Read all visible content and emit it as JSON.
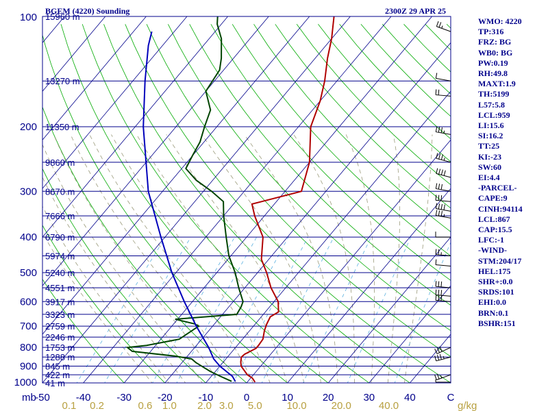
{
  "header": {
    "station": "BGEM (4220) Sounding",
    "time": "2300Z 29 APR 25"
  },
  "indices": [
    "WMO: 4220",
    "TP:316",
    "FRZ: BG",
    "WB0: BG",
    "PW:0.19",
    "RH:49.8",
    "MAXT:1.9",
    "TH:5199",
    "L57:5.8",
    "LCL:959",
    "LI:15.6",
    "SI:16.2",
    "TT:25",
    "KI:-23",
    "SW:60",
    "EI:4.4",
    "-PARCEL-",
    "CAPE:9",
    "CINH:94114",
    "LCL:867",
    "CAP:15.5",
    "LFC:-1",
    "-WIND-",
    "STM:204/17",
    "HEL:175",
    "SHR+:0.0",
    "SRDS:101",
    "EHI:0.0",
    "BRN:0.1",
    "BSHR:151"
  ],
  "colors": {
    "isobar": "#00008b",
    "isotherm": "#00008b",
    "dry_adiabat": "#00aa00",
    "moist_adiabat": "#9a9a7a",
    "mixing_ratio": "#5ab0e0",
    "temperature": "#b00000",
    "dewpoint": "#004400",
    "parcel": "#0000bb",
    "axis_text": "#00008b",
    "mixing_text": "#b8a040"
  },
  "chart_data": {
    "type": "skew-t",
    "pressure_axis": {
      "scale": "log",
      "range": [
        100,
        1000
      ],
      "unit_label": "mb",
      "ticks": [
        100,
        200,
        300,
        400,
        500,
        600,
        700,
        800,
        900,
        1000
      ]
    },
    "temperature_axis": {
      "unit": "C",
      "range": [
        -50,
        50
      ],
      "skewed": true,
      "ticks": [
        -50,
        -40,
        -30,
        -20,
        -10,
        0,
        10,
        20,
        30,
        40
      ],
      "tick_labels": [
        "-50",
        "-40",
        "-30",
        "-20",
        "-10",
        "0",
        "10",
        "20",
        "30",
        "40"
      ],
      "end_label": "C"
    },
    "mixing_ratio_axis": {
      "unit": "g/kg",
      "values": [
        0.1,
        0.2,
        0.6,
        1.0,
        2.0,
        3.0,
        5.0,
        10.0,
        20.0,
        40.0
      ],
      "labels": [
        "0.1",
        "0.2",
        "0.6",
        "1.0",
        "2.0",
        "3.0",
        "5.0",
        "10.0",
        "20.0",
        "40.0"
      ]
    },
    "heights": [
      {
        "p": 100,
        "label": "15960 m"
      },
      {
        "p": 150,
        "label": "13270 m"
      },
      {
        "p": 200,
        "label": "11350 m"
      },
      {
        "p": 250,
        "label": "9860 m"
      },
      {
        "p": 300,
        "label": "8670 m"
      },
      {
        "p": 350,
        "label": "7666 m"
      },
      {
        "p": 400,
        "label": "6790 m"
      },
      {
        "p": 450,
        "label": "5974 m"
      },
      {
        "p": 500,
        "label": "5240 m"
      },
      {
        "p": 550,
        "label": "4551 m"
      },
      {
        "p": 600,
        "label": "3917 m"
      },
      {
        "p": 650,
        "label": "3323 m"
      },
      {
        "p": 700,
        "label": "2759 m"
      },
      {
        "p": 750,
        "label": "2246 m"
      },
      {
        "p": 800,
        "label": "1753 m"
      },
      {
        "p": 850,
        "label": "1288 m"
      },
      {
        "p": 900,
        "label": "845 m"
      },
      {
        "p": 950,
        "label": "422 m"
      },
      {
        "p": 1000,
        "label": "41 m"
      }
    ],
    "series": [
      {
        "name": "Temperature",
        "points": [
          [
            995,
            1.9
          ],
          [
            970,
            0.4
          ],
          [
            950,
            -1.5
          ],
          [
            900,
            -4.8
          ],
          [
            875,
            -5.8
          ],
          [
            850,
            -6.6
          ],
          [
            835,
            -6.4
          ],
          [
            805,
            -4.8
          ],
          [
            790,
            -4.8
          ],
          [
            760,
            -5.0
          ],
          [
            720,
            -6.4
          ],
          [
            690,
            -7.2
          ],
          [
            660,
            -7.8
          ],
          [
            640,
            -6.8
          ],
          [
            600,
            -9.0
          ],
          [
            550,
            -13.6
          ],
          [
            500,
            -17.8
          ],
          [
            460,
            -21.8
          ],
          [
            400,
            -26.0
          ],
          [
            350,
            -32.4
          ],
          [
            325,
            -35.5
          ],
          [
            300,
            -26.0
          ],
          [
            250,
            -30.0
          ],
          [
            200,
            -37.0
          ],
          [
            170,
            -40.0
          ],
          [
            150,
            -43.0
          ],
          [
            130,
            -47.0
          ],
          [
            115,
            -50.0
          ],
          [
            100,
            -54.0
          ]
        ]
      },
      {
        "name": "Dewpoint",
        "points": [
          [
            990,
            -4.0
          ],
          [
            960,
            -7.7
          ],
          [
            930,
            -11.3
          ],
          [
            880,
            -16.6
          ],
          [
            860,
            -18.4
          ],
          [
            845,
            -23.0
          ],
          [
            820,
            -34.5
          ],
          [
            800,
            -36.5
          ],
          [
            790,
            -32.2
          ],
          [
            760,
            -25.5
          ],
          [
            700,
            -23.4
          ],
          [
            690,
            -24.9
          ],
          [
            670,
            -30.6
          ],
          [
            650,
            -16.5
          ],
          [
            620,
            -17.0
          ],
          [
            600,
            -17.6
          ],
          [
            550,
            -21.5
          ],
          [
            500,
            -25.5
          ],
          [
            450,
            -30.5
          ],
          [
            400,
            -35.0
          ],
          [
            350,
            -40.0
          ],
          [
            320,
            -43.0
          ],
          [
            300,
            -48.0
          ],
          [
            280,
            -54.0
          ],
          [
            260,
            -59.0
          ],
          [
            240,
            -60.0
          ],
          [
            220,
            -61.0
          ],
          [
            200,
            -63.0
          ],
          [
            180,
            -65.0
          ],
          [
            160,
            -70.0
          ],
          [
            140,
            -71.0
          ],
          [
            130,
            -73.0
          ],
          [
            115,
            -77.0
          ],
          [
            105,
            -81.0
          ],
          [
            100,
            -82.5
          ]
        ]
      },
      {
        "name": "Parcel",
        "points": [
          [
            990,
            -3.1
          ],
          [
            960,
            -4.8
          ],
          [
            900,
            -10.0
          ],
          [
            860,
            -13.0
          ],
          [
            800,
            -16.6
          ],
          [
            700,
            -24.0
          ],
          [
            600,
            -32.0
          ],
          [
            500,
            -41.0
          ],
          [
            400,
            -51.0
          ],
          [
            300,
            -63.5
          ],
          [
            200,
            -78.0
          ],
          [
            150,
            -87.0
          ],
          [
            120,
            -93.5
          ],
          [
            110,
            -95.5
          ]
        ]
      }
    ],
    "wind_barbs": [
      {
        "p": 110,
        "dir": 290,
        "spd": 25
      },
      {
        "p": 150,
        "dir": 280,
        "spd": 10
      },
      {
        "p": 165,
        "dir": 275,
        "spd": 20
      },
      {
        "p": 210,
        "dir": 280,
        "spd": 35
      },
      {
        "p": 250,
        "dir": 285,
        "spd": 35
      },
      {
        "p": 275,
        "dir": 285,
        "spd": 40
      },
      {
        "p": 300,
        "dir": 280,
        "spd": 30
      },
      {
        "p": 320,
        "dir": 275,
        "spd": 30
      },
      {
        "p": 340,
        "dir": 280,
        "spd": 40
      },
      {
        "p": 355,
        "dir": 280,
        "spd": 35
      },
      {
        "p": 400,
        "dir": 270,
        "spd": 10
      },
      {
        "p": 450,
        "dir": 275,
        "spd": 25
      },
      {
        "p": 480,
        "dir": 275,
        "spd": 10
      },
      {
        "p": 550,
        "dir": 275,
        "spd": 30
      },
      {
        "p": 580,
        "dir": 275,
        "spd": 30
      },
      {
        "p": 600,
        "dir": 275,
        "spd": 30
      },
      {
        "p": 800,
        "dir": 245,
        "spd": 30
      },
      {
        "p": 850,
        "dir": 255,
        "spd": 35
      },
      {
        "p": 950,
        "dir": 250,
        "spd": 25
      },
      {
        "p": 995,
        "dir": 270,
        "spd": 5
      }
    ]
  }
}
